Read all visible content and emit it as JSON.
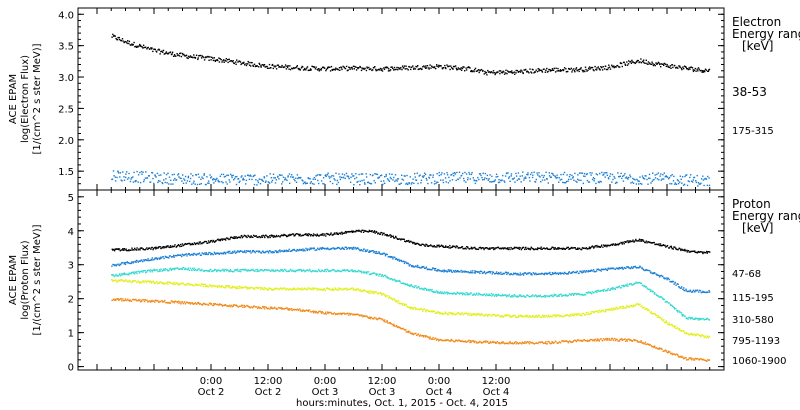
{
  "chart_data": [
    {
      "type": "scatter",
      "ylabel": "ACE EPAM",
      "ylabel2": "log(Electron Flux)",
      "ylabel3": "[1/(cm^2 s ster MeV)]",
      "ylim": [
        1.2,
        4.1
      ],
      "yticks": [
        "1.5",
        "2.0",
        "2.5",
        "3.0",
        "3.5",
        "4.0"
      ],
      "legend_title": [
        "Electron",
        "Energy ranges",
        "[keV]"
      ],
      "series": [
        {
          "name": "38-53",
          "color": "#000000",
          "values": [
            [
              -21,
              3.66
            ],
            [
              -18,
              3.57
            ],
            [
              -12,
              3.43
            ],
            [
              -6,
              3.35
            ],
            [
              0,
              3.3
            ],
            [
              6,
              3.24
            ],
            [
              12,
              3.18
            ],
            [
              18,
              3.16
            ],
            [
              24,
              3.14
            ],
            [
              30,
              3.15
            ],
            [
              36,
              3.14
            ],
            [
              42,
              3.16
            ],
            [
              48,
              3.18
            ],
            [
              54,
              3.14
            ],
            [
              58,
              3.08
            ],
            [
              64,
              3.09
            ],
            [
              70,
              3.12
            ],
            [
              78,
              3.13
            ],
            [
              84,
              3.17
            ],
            [
              90,
              3.27
            ],
            [
              96,
              3.19
            ],
            [
              102,
              3.13
            ],
            [
              105,
              3.11
            ]
          ]
        },
        {
          "name": "175-315",
          "color": "#1a7fd4",
          "values": [
            [
              -21,
              1.45
            ],
            [
              -12,
              1.4
            ],
            [
              0,
              1.38
            ],
            [
              12,
              1.38
            ],
            [
              24,
              1.39
            ],
            [
              36,
              1.38
            ],
            [
              48,
              1.4
            ],
            [
              60,
              1.41
            ],
            [
              72,
              1.41
            ],
            [
              84,
              1.4
            ],
            [
              96,
              1.39
            ],
            [
              105,
              1.35
            ]
          ]
        }
      ]
    },
    {
      "type": "scatter",
      "ylabel": "ACE EPAM",
      "ylabel2": "log(Proton Flux)",
      "ylabel3": "[1/(cm^2 s ster MeV)]",
      "ylim": [
        -0.1,
        5.2
      ],
      "yticks": [
        "0",
        "1",
        "2",
        "3",
        "4",
        "5"
      ],
      "legend_title": [
        "Proton",
        "Energy ranges",
        "[keV]"
      ],
      "series": [
        {
          "name": "47-68",
          "color": "#000000",
          "values": [
            [
              -21,
              3.45
            ],
            [
              -12,
              3.5
            ],
            [
              -6,
              3.6
            ],
            [
              0,
              3.7
            ],
            [
              6,
              3.85
            ],
            [
              12,
              3.85
            ],
            [
              18,
              3.9
            ],
            [
              24,
              3.9
            ],
            [
              30,
              4.0
            ],
            [
              34,
              4.0
            ],
            [
              38,
              3.85
            ],
            [
              44,
              3.6
            ],
            [
              50,
              3.55
            ],
            [
              56,
              3.5
            ],
            [
              64,
              3.5
            ],
            [
              70,
              3.5
            ],
            [
              78,
              3.5
            ],
            [
              84,
              3.6
            ],
            [
              90,
              3.75
            ],
            [
              96,
              3.55
            ],
            [
              102,
              3.38
            ],
            [
              105,
              3.38
            ]
          ]
        },
        {
          "name": "115-195",
          "color": "#1a7fd4",
          "values": [
            [
              -21,
              3.0
            ],
            [
              -12,
              3.2
            ],
            [
              -6,
              3.3
            ],
            [
              0,
              3.35
            ],
            [
              6,
              3.4
            ],
            [
              12,
              3.4
            ],
            [
              18,
              3.45
            ],
            [
              24,
              3.5
            ],
            [
              30,
              3.5
            ],
            [
              36,
              3.35
            ],
            [
              42,
              3.0
            ],
            [
              48,
              2.85
            ],
            [
              56,
              2.8
            ],
            [
              64,
              2.75
            ],
            [
              70,
              2.75
            ],
            [
              78,
              2.8
            ],
            [
              84,
              2.9
            ],
            [
              90,
              2.95
            ],
            [
              96,
              2.6
            ],
            [
              100,
              2.25
            ],
            [
              105,
              2.22
            ]
          ]
        },
        {
          "name": "310-580",
          "color": "#33d9d0",
          "values": [
            [
              -21,
              2.7
            ],
            [
              -12,
              2.85
            ],
            [
              -6,
              2.9
            ],
            [
              0,
              2.85
            ],
            [
              6,
              2.85
            ],
            [
              12,
              2.85
            ],
            [
              18,
              2.85
            ],
            [
              24,
              2.85
            ],
            [
              30,
              2.85
            ],
            [
              36,
              2.7
            ],
            [
              42,
              2.4
            ],
            [
              48,
              2.2
            ],
            [
              56,
              2.15
            ],
            [
              64,
              2.1
            ],
            [
              70,
              2.1
            ],
            [
              78,
              2.15
            ],
            [
              84,
              2.3
            ],
            [
              90,
              2.5
            ],
            [
              96,
              1.9
            ],
            [
              100,
              1.45
            ],
            [
              105,
              1.4
            ]
          ]
        },
        {
          "name": "795-1193",
          "color": "#e0ef1a",
          "values": [
            [
              -21,
              2.55
            ],
            [
              -12,
              2.5
            ],
            [
              -6,
              2.45
            ],
            [
              0,
              2.4
            ],
            [
              6,
              2.35
            ],
            [
              12,
              2.3
            ],
            [
              18,
              2.3
            ],
            [
              24,
              2.3
            ],
            [
              30,
              2.3
            ],
            [
              36,
              2.15
            ],
            [
              42,
              1.75
            ],
            [
              48,
              1.6
            ],
            [
              56,
              1.55
            ],
            [
              64,
              1.5
            ],
            [
              70,
              1.5
            ],
            [
              78,
              1.55
            ],
            [
              84,
              1.7
            ],
            [
              90,
              1.85
            ],
            [
              96,
              1.3
            ],
            [
              100,
              1.0
            ],
            [
              105,
              0.88
            ]
          ]
        },
        {
          "name": "1060-1900",
          "color": "#f08a1a",
          "values": [
            [
              -21,
              2.0
            ],
            [
              -12,
              1.95
            ],
            [
              -6,
              1.9
            ],
            [
              0,
              1.85
            ],
            [
              6,
              1.8
            ],
            [
              12,
              1.75
            ],
            [
              18,
              1.7
            ],
            [
              24,
              1.6
            ],
            [
              30,
              1.55
            ],
            [
              36,
              1.4
            ],
            [
              42,
              1.0
            ],
            [
              48,
              0.8
            ],
            [
              56,
              0.75
            ],
            [
              64,
              0.72
            ],
            [
              70,
              0.72
            ],
            [
              78,
              0.78
            ],
            [
              84,
              0.82
            ],
            [
              90,
              0.78
            ],
            [
              96,
              0.45
            ],
            [
              100,
              0.25
            ],
            [
              105,
              0.2
            ]
          ]
        }
      ]
    }
  ],
  "xaxis": {
    "xlim": [
      -28,
      108
    ],
    "ticks": [
      [
        0,
        "0:00",
        "Oct 2"
      ],
      [
        12,
        "12:00",
        "Oct 2"
      ],
      [
        24,
        "0:00",
        "Oct 3"
      ],
      [
        36,
        "12:00",
        "Oct 3"
      ],
      [
        48,
        "0:00",
        "Oct 4"
      ],
      [
        60,
        "12:00",
        "Oct 4"
      ]
    ],
    "label": "hours:minutes, Oct. 1, 2015 - Oct. 4, 2015"
  }
}
